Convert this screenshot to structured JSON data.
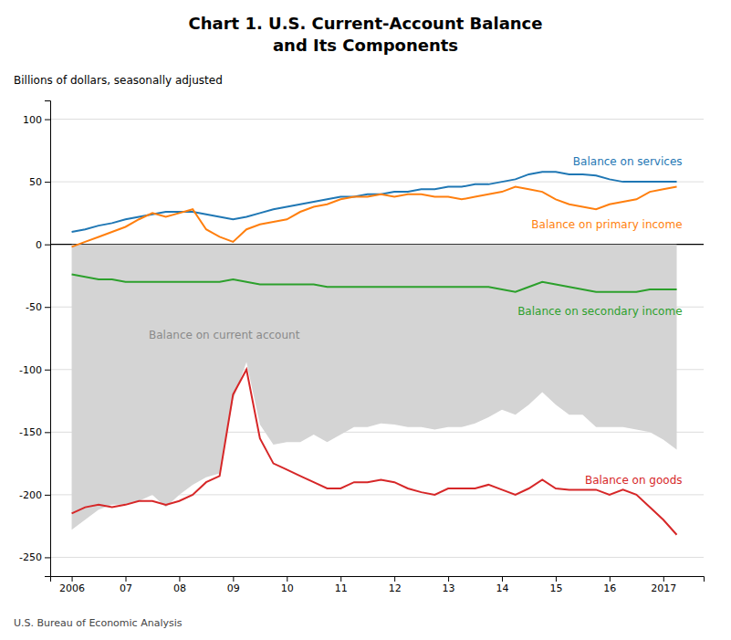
{
  "chart_data": {
    "type": "line",
    "title": "Chart 1. U.S. Current-Account Balance",
    "subtitle": "and Its Components",
    "y_label": "Billions of dollars, seasonally adjusted",
    "source": "U.S. Bureau of Economic Analysis",
    "x": [
      2006.0,
      2006.25,
      2006.5,
      2006.75,
      2007.0,
      2007.25,
      2007.5,
      2007.75,
      2008.0,
      2008.25,
      2008.5,
      2008.75,
      2009.0,
      2009.25,
      2009.5,
      2009.75,
      2010.0,
      2010.25,
      2010.5,
      2010.75,
      2011.0,
      2011.25,
      2011.5,
      2011.75,
      2012.0,
      2012.25,
      2012.5,
      2012.75,
      2013.0,
      2013.25,
      2013.5,
      2013.75,
      2014.0,
      2014.25,
      2014.5,
      2014.75,
      2015.0,
      2015.25,
      2015.5,
      2015.75,
      2016.0,
      2016.25,
      2016.5,
      2016.75,
      2017.0,
      2017.25
    ],
    "xlim": [
      2005.6,
      2017.75
    ],
    "xticks": [
      2006,
      {
        "value": 2007,
        "label": "07"
      },
      {
        "value": 2008,
        "label": "08"
      },
      {
        "value": 2009,
        "label": "09"
      },
      {
        "value": 2010,
        "label": "10"
      },
      {
        "value": 2011,
        "label": "11"
      },
      {
        "value": 2012,
        "label": "12"
      },
      {
        "value": 2013,
        "label": "13"
      },
      {
        "value": 2014,
        "label": "14"
      },
      {
        "value": 2015,
        "label": "15"
      },
      {
        "value": 2016,
        "label": "16"
      },
      2017
    ],
    "ylim": [
      -265,
      115
    ],
    "yticks": [
      -250,
      -200,
      -150,
      -100,
      -50,
      0,
      50,
      100
    ],
    "grid": true,
    "series": [
      {
        "name": "Balance on current account",
        "type": "area",
        "values": [
          -228,
          -220,
          -212,
          -208,
          -208,
          -205,
          -200,
          -210,
          -200,
          -192,
          -186,
          -183,
          -124,
          -94,
          -144,
          -160,
          -158,
          -158,
          -152,
          -158,
          -152,
          -146,
          -146,
          -143,
          -144,
          -146,
          -146,
          -148,
          -146,
          -146,
          -143,
          -138,
          -132,
          -136,
          -128,
          -118,
          -128,
          -136,
          -136,
          -146,
          -146,
          -146,
          -148,
          -150,
          -156,
          -164
        ]
      },
      {
        "name": "Balance on services",
        "values": [
          10,
          12,
          15,
          17,
          20,
          22,
          24,
          26,
          26,
          26,
          24,
          22,
          20,
          22,
          25,
          28,
          30,
          32,
          34,
          36,
          38,
          38,
          40,
          40,
          42,
          42,
          44,
          44,
          46,
          46,
          48,
          48,
          50,
          52,
          56,
          58,
          58,
          56,
          56,
          55,
          52,
          50,
          50,
          50,
          50,
          50
        ]
      },
      {
        "name": "Balance on primary income",
        "values": [
          -2,
          2,
          6,
          10,
          14,
          20,
          25,
          22,
          25,
          28,
          12,
          6,
          2,
          12,
          16,
          18,
          20,
          26,
          30,
          32,
          36,
          38,
          38,
          40,
          38,
          40,
          40,
          38,
          38,
          36,
          38,
          40,
          42,
          46,
          44,
          42,
          36,
          32,
          30,
          28,
          32,
          34,
          36,
          42,
          44,
          46
        ]
      },
      {
        "name": "Balance on secondary income",
        "values": [
          -24,
          -26,
          -28,
          -28,
          -30,
          -30,
          -30,
          -30,
          -30,
          -30,
          -30,
          -30,
          -28,
          -30,
          -32,
          -32,
          -32,
          -32,
          -32,
          -34,
          -34,
          -34,
          -34,
          -34,
          -34,
          -34,
          -34,
          -34,
          -34,
          -34,
          -34,
          -34,
          -36,
          -38,
          -34,
          -30,
          -32,
          -34,
          -36,
          -38,
          -38,
          -38,
          -38,
          -36,
          -36,
          -36
        ]
      },
      {
        "name": "Balance on goods",
        "values": [
          -215,
          -210,
          -208,
          -210,
          -208,
          -205,
          -205,
          -208,
          -205,
          -200,
          -190,
          -185,
          -120,
          -100,
          -155,
          -175,
          -180,
          -185,
          -190,
          -195,
          -195,
          -190,
          -190,
          -188,
          -190,
          -195,
          -198,
          -200,
          -195,
          -195,
          -195,
          -192,
          -196,
          -200,
          -195,
          -188,
          -195,
          -196,
          -196,
          -196,
          -200,
          -196,
          -200,
          -210,
          -220,
          -232
        ]
      }
    ]
  }
}
